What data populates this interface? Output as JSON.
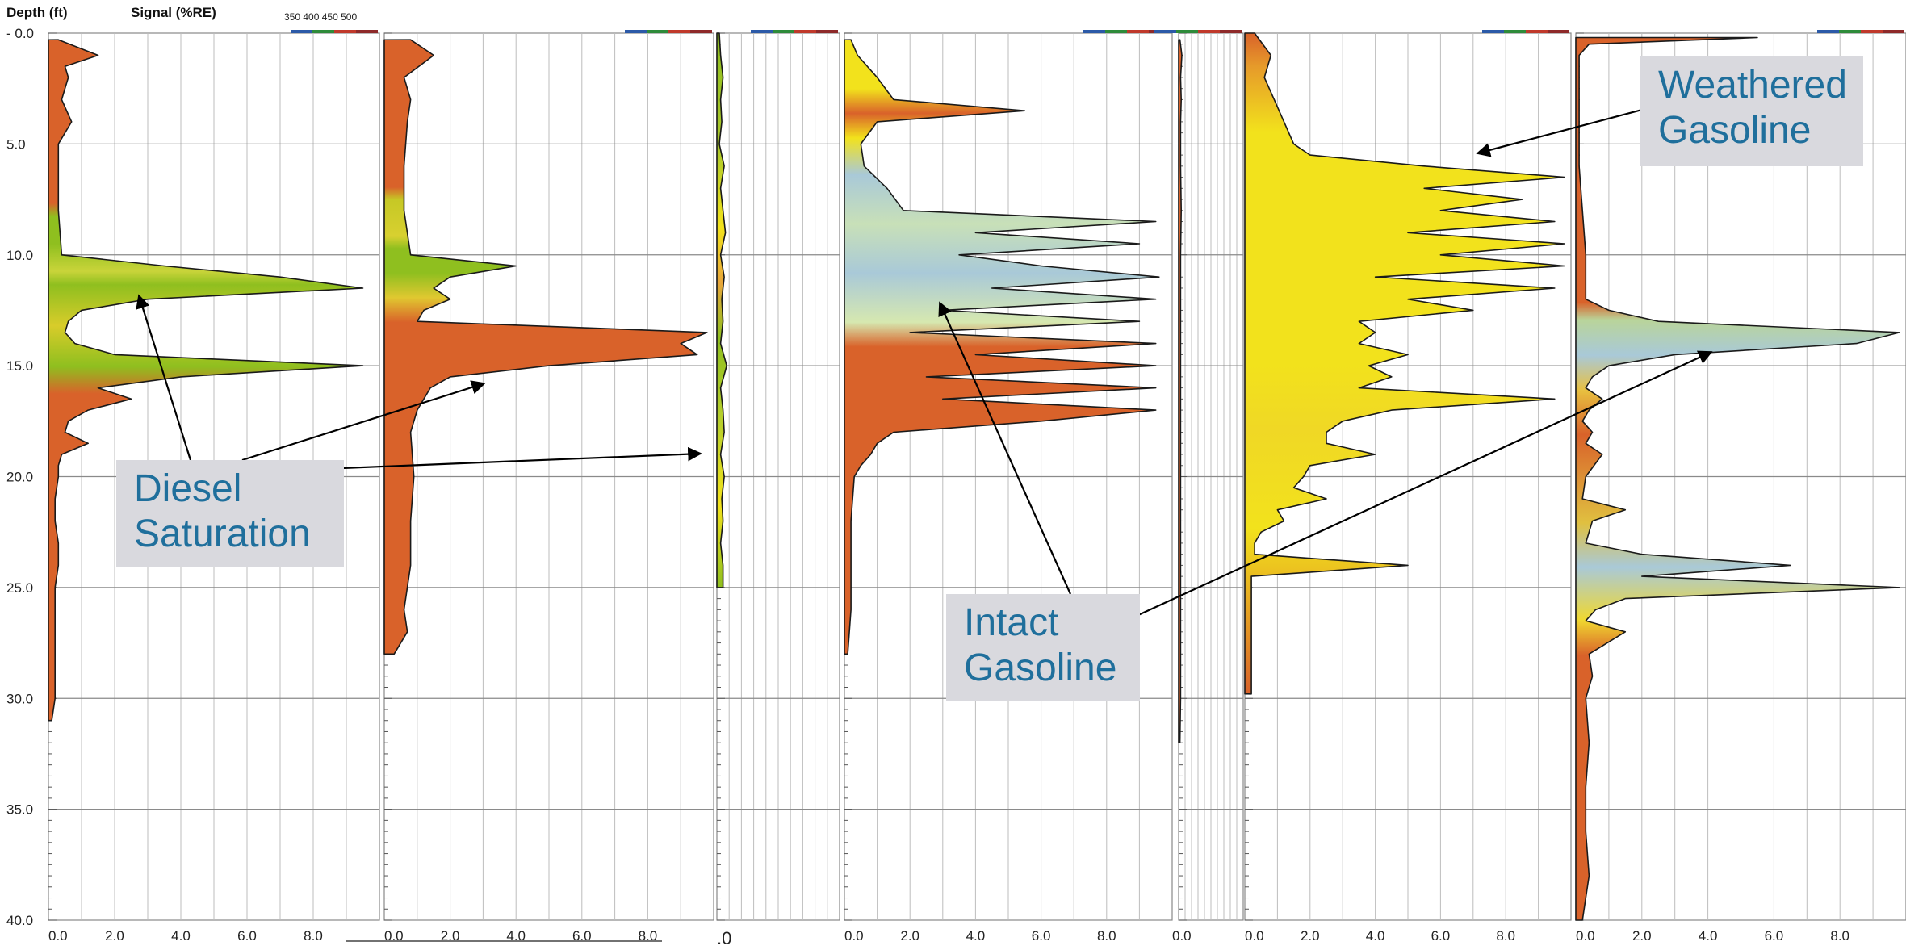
{
  "header": {
    "depth_label": "Depth (ft)",
    "signal_label": "Signal (%RE)",
    "wavelengths": [
      "350",
      "400",
      "450",
      "500"
    ]
  },
  "callouts": {
    "weathered": [
      "Weathered",
      "Gasoline"
    ],
    "diesel": [
      "Diesel",
      "Saturation"
    ],
    "intact": [
      "Intact",
      "Gasoline"
    ]
  },
  "chart_data": {
    "type": "area",
    "xlabel": "Signal (%RE)",
    "ylabel": "Depth (ft)",
    "ylim": [
      0,
      40
    ],
    "depth_ticks": [
      "0.0",
      "5.0",
      "10.0",
      "15.0",
      "20.0",
      "25.0",
      "30.0",
      "35.0",
      "40.0"
    ],
    "x_tick_labels": [
      "0.0",
      "2.0",
      "4.0",
      "6.0",
      "8.0"
    ],
    "colors": {
      "diesel": "#8fbf1f",
      "gasoline_yellow": "#f2e21c",
      "intact_blue": "#a9c9d8",
      "background_orange": "#d9622a"
    },
    "series": [
      {
        "depths": [
          0.3,
          1,
          1.5,
          2,
          3,
          4,
          5,
          6,
          8,
          10,
          10.5,
          11,
          11.5,
          12,
          12.5,
          13,
          13.5,
          14,
          14.5,
          15,
          15.5,
          16,
          16.5,
          17,
          17.5,
          18,
          18.5,
          19,
          19.5,
          20,
          21,
          22,
          23,
          24,
          25,
          26,
          27,
          28,
          29,
          30,
          31
        ],
        "values": [
          0.3,
          1.5,
          0.5,
          0.6,
          0.4,
          0.7,
          0.3,
          0.3,
          0.3,
          0.4,
          3.5,
          7,
          9.5,
          3,
          1,
          0.6,
          0.5,
          0.8,
          2,
          9.5,
          4,
          1.5,
          2.5,
          1.2,
          0.6,
          0.5,
          1.2,
          0.4,
          0.3,
          0.3,
          0.2,
          0.2,
          0.3,
          0.3,
          0.2,
          0.2,
          0.2,
          0.2,
          0.2,
          0.2,
          0.1
        ]
      },
      {
        "depths": [
          0.3,
          1,
          2,
          3,
          4,
          6,
          8,
          10,
          10.5,
          11,
          11.5,
          12,
          12.5,
          13,
          13.5,
          14,
          14.5,
          15,
          15.5,
          16,
          16.5,
          17,
          18,
          20,
          22,
          24,
          26,
          27,
          28
        ],
        "values": [
          0.8,
          1.5,
          0.6,
          0.8,
          0.7,
          0.6,
          0.6,
          0.8,
          4,
          2,
          1.5,
          2,
          1.2,
          1,
          9.8,
          9,
          9.5,
          5,
          2,
          1.4,
          1.2,
          1,
          0.8,
          0.9,
          0.8,
          0.8,
          0.6,
          0.7,
          0.3
        ]
      },
      {
        "depths": [
          0,
          1,
          2,
          3,
          4,
          5,
          6,
          7,
          8,
          9,
          10,
          11,
          12,
          13,
          14,
          15,
          16,
          17,
          18,
          19,
          20,
          21,
          22,
          23,
          24,
          25
        ],
        "values": [
          0.2,
          0.3,
          0.5,
          0.3,
          0.4,
          0.2,
          0.6,
          0.3,
          0.5,
          0.7,
          0.3,
          0.6,
          0.4,
          0.5,
          0.3,
          0.8,
          0.3,
          0.5,
          0.6,
          0.3,
          0.6,
          0.4,
          0.5,
          0.3,
          0.5,
          0.5
        ]
      },
      {
        "depths": [
          0.3,
          1,
          2,
          3,
          3.5,
          4,
          5,
          6,
          7,
          8,
          8.5,
          9,
          9.5,
          10,
          10.5,
          11,
          11.5,
          12,
          12.5,
          13,
          13.5,
          14,
          14.5,
          15,
          15.5,
          16,
          16.5,
          17,
          17.5,
          18,
          18.5,
          19,
          19.5,
          20,
          22,
          24,
          26,
          28
        ],
        "values": [
          0.2,
          0.4,
          1,
          1.5,
          5.5,
          1,
          0.5,
          0.6,
          1.3,
          1.8,
          9.5,
          4,
          9,
          3.5,
          6,
          9.6,
          4.5,
          9.5,
          3,
          9,
          2,
          9.5,
          4,
          9.5,
          2.5,
          9.5,
          3,
          9.5,
          6,
          1.5,
          1,
          0.8,
          0.5,
          0.3,
          0.2,
          0.2,
          0.2,
          0.1
        ]
      },
      {
        "depths": [
          0.3,
          1,
          2,
          3,
          4,
          6,
          8,
          10,
          12,
          14,
          16,
          18,
          20,
          22,
          24,
          26,
          28,
          30,
          32
        ],
        "values": [
          0.2,
          0.5,
          0.3,
          0.4,
          0.3,
          0.3,
          0.4,
          0.3,
          0.3,
          0.3,
          0.3,
          0.3,
          0.3,
          0.3,
          0.3,
          0.3,
          0.3,
          0.3,
          0.2
        ]
      },
      {
        "depths": [
          0,
          1,
          2,
          3,
          4,
          5,
          5.5,
          6,
          6.5,
          7,
          7.5,
          8,
          8.5,
          9,
          9.5,
          10,
          10.5,
          11,
          11.5,
          12,
          12.5,
          13,
          13.5,
          14,
          14.5,
          15,
          15.5,
          16,
          16.5,
          17,
          17.5,
          18,
          18.5,
          19,
          19.5,
          20,
          20.5,
          21,
          21.5,
          22,
          22.5,
          23,
          23.5,
          24,
          24.5,
          25,
          26,
          28,
          29,
          29.8
        ],
        "values": [
          0.3,
          0.8,
          0.6,
          0.9,
          1.2,
          1.5,
          2,
          5.5,
          9.8,
          5.5,
          8.5,
          6,
          9.5,
          5,
          9.8,
          6,
          9.8,
          4,
          9.5,
          5,
          7,
          3.5,
          4,
          3.5,
          5,
          3.8,
          4.5,
          3.5,
          9.5,
          4.5,
          3,
          2.5,
          2.5,
          4,
          2,
          1.8,
          1.5,
          2.5,
          1,
          1.2,
          0.5,
          0.3,
          0.3,
          5,
          0.2,
          0.2,
          0.2,
          0.2,
          0.2,
          0.2
        ]
      },
      {
        "depths": [
          0.2,
          0.5,
          1,
          2,
          4,
          6,
          8,
          10,
          11,
          12,
          12.5,
          13,
          13.5,
          14,
          14.5,
          15,
          15.5,
          16,
          16.5,
          17,
          17.5,
          18,
          18.5,
          19,
          20,
          21,
          21.5,
          22,
          23,
          23.5,
          24,
          24.5,
          25,
          25.5,
          26,
          26.5,
          27,
          28,
          29,
          30,
          32,
          34,
          36,
          38,
          40
        ],
        "values": [
          5.5,
          0.4,
          0.1,
          0.1,
          0.1,
          0.1,
          0.2,
          0.3,
          0.3,
          0.3,
          1,
          2.5,
          9.8,
          8.5,
          3,
          1,
          0.5,
          0.3,
          0.8,
          0.4,
          0.2,
          0.5,
          0.3,
          0.8,
          0.3,
          0.2,
          1.5,
          0.5,
          0.3,
          2,
          6.5,
          2,
          9.8,
          1.5,
          0.6,
          0.3,
          1.5,
          0.4,
          0.5,
          0.3,
          0.4,
          0.3,
          0.3,
          0.4,
          0.2
        ]
      }
    ]
  }
}
